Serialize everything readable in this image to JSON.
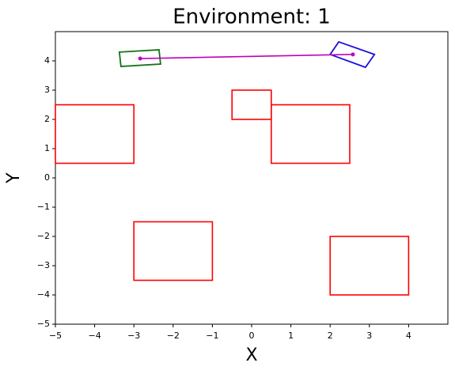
{
  "chart_data": {
    "type": "shapes",
    "title": "Environment: 1",
    "xlabel": "X",
    "ylabel": "Y",
    "xlim": [
      -5,
      5
    ],
    "ylim": [
      -5,
      5
    ],
    "xticks": [
      {
        "value": -5,
        "label": "−5"
      },
      {
        "value": -4,
        "label": "−4"
      },
      {
        "value": -3,
        "label": "−3"
      },
      {
        "value": -2,
        "label": "−2"
      },
      {
        "value": -1,
        "label": "−1"
      },
      0,
      1,
      2,
      3,
      4
    ],
    "yticks": [
      {
        "value": -5,
        "label": "−5"
      },
      {
        "value": -4,
        "label": "−4"
      },
      {
        "value": -3,
        "label": "−3"
      },
      {
        "value": -2,
        "label": "−2"
      },
      {
        "value": -1,
        "label": "−1"
      },
      0,
      1,
      2,
      3,
      4
    ],
    "obstacles": {
      "color": "#ff0000",
      "rects": [
        [
          -5,
          0.5,
          -3,
          2.5
        ],
        [
          -0.5,
          2,
          0.5,
          3
        ],
        [
          0.5,
          0.5,
          2.5,
          2.5
        ],
        [
          -3,
          -3.5,
          -1,
          -1.5
        ],
        [
          2,
          -4,
          4,
          -2
        ]
      ]
    },
    "polygons": [
      {
        "color": "#127312",
        "x": [
          -3.37,
          -2.36,
          -2.32,
          -3.33
        ],
        "y": [
          4.3,
          4.38,
          3.89,
          3.81
        ]
      },
      {
        "color": "#1a10e0",
        "x": [
          2.22,
          3.13,
          2.9,
          2.0
        ],
        "y": [
          4.65,
          4.22,
          3.78,
          4.22
        ]
      }
    ],
    "path": {
      "color": "#bf00bf",
      "x": [
        -2.84,
        2.58
      ],
      "y": [
        4.08,
        4.22
      ]
    }
  }
}
